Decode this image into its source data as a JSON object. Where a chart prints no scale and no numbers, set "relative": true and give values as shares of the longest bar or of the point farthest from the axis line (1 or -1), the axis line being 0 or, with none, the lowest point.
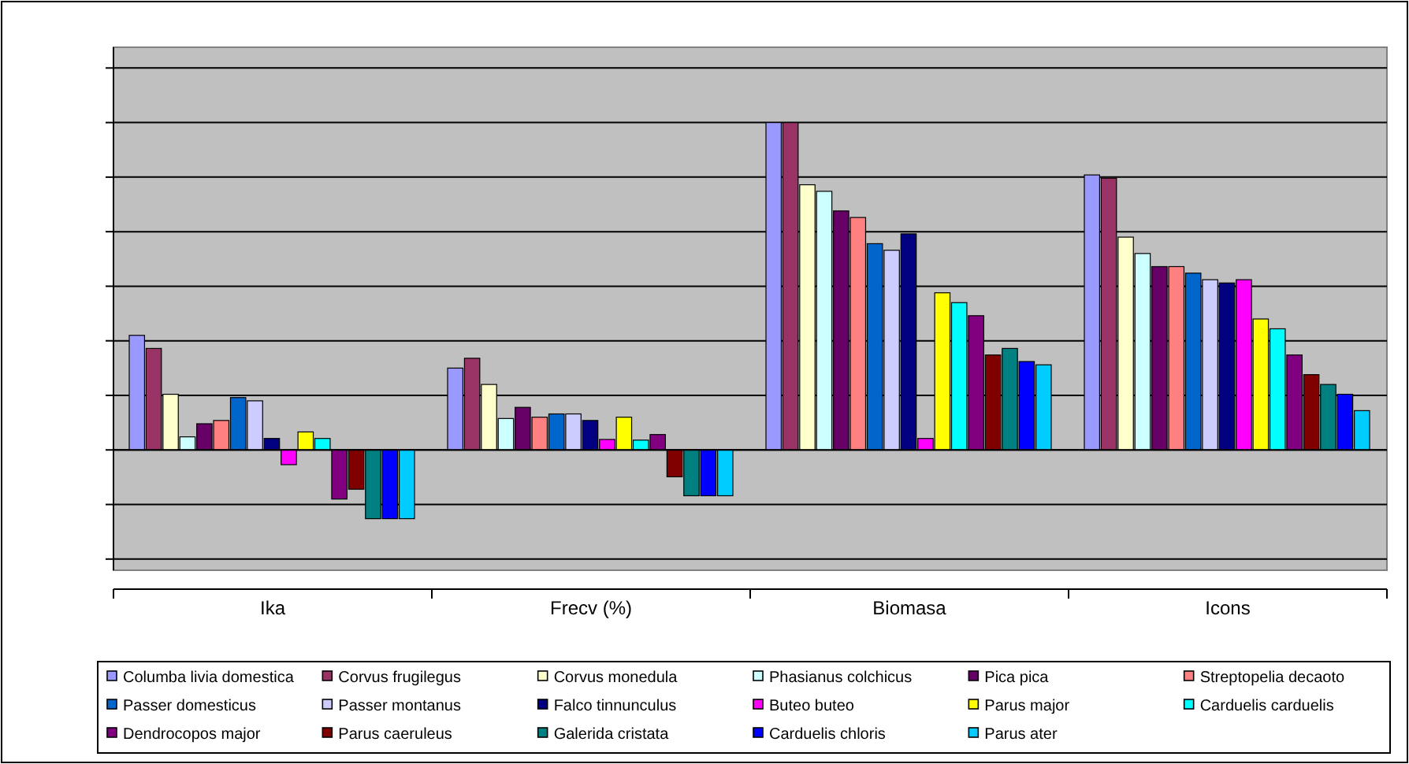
{
  "chart_data": {
    "type": "bar",
    "relative": true,
    "grid": true,
    "legend": "bottom",
    "categories": [
      "Ika",
      "Frecv (%)",
      "Biomasa",
      "Icons"
    ],
    "series": [
      {
        "name": "Columba livia domestica",
        "color": "#9999ff",
        "values": [
          0.35,
          0.25,
          1,
          0.84
        ]
      },
      {
        "name": "Corvus frugilegus",
        "color": "#993366",
        "values": [
          0.31,
          0.28,
          1,
          0.83
        ]
      },
      {
        "name": "Corvus monedula",
        "color": "#ffffcc",
        "values": [
          0.17,
          0.2,
          0.81,
          0.65
        ]
      },
      {
        "name": "Phasianus colchicus",
        "color": "#ccffff",
        "values": [
          0.04,
          0.096,
          0.79,
          0.6
        ]
      },
      {
        "name": "Pica pica",
        "color": "#660066",
        "values": [
          0.08,
          0.13,
          0.73,
          0.56
        ]
      },
      {
        "name": "Streptopelia decaoto",
        "color": "#ff8080",
        "values": [
          0.09,
          0.1,
          0.71,
          0.56
        ]
      },
      {
        "name": "Passer domesticus",
        "color": "#0066cc",
        "values": [
          0.16,
          0.11,
          0.63,
          0.54
        ]
      },
      {
        "name": "Passer montanus",
        "color": "#ccccff",
        "values": [
          0.15,
          0.11,
          0.61,
          0.52
        ]
      },
      {
        "name": "Falco tinnunculus",
        "color": "#000080",
        "values": [
          0.035,
          0.09,
          0.66,
          0.51
        ]
      },
      {
        "name": "Buteo buteo",
        "color": "#ff00ff",
        "values": [
          -0.045,
          0.032,
          0.035,
          0.52
        ]
      },
      {
        "name": "Parus major",
        "color": "#ffff00",
        "values": [
          0.055,
          0.1,
          0.48,
          0.4
        ]
      },
      {
        "name": "Carduelis carduelis",
        "color": "#00ffff",
        "values": [
          0.035,
          0.03,
          0.45,
          0.37
        ]
      },
      {
        "name": "Dendrocopos major",
        "color": "#800080",
        "values": [
          -0.15,
          0.047,
          0.41,
          0.29
        ]
      },
      {
        "name": "Parus caeruleus",
        "color": "#800000",
        "values": [
          -0.12,
          -0.082,
          0.29,
          0.23
        ]
      },
      {
        "name": "Galerida cristata",
        "color": "#008080",
        "values": [
          -0.21,
          -0.14,
          0.31,
          0.2
        ]
      },
      {
        "name": "Carduelis chloris",
        "color": "#0000ff",
        "values": [
          -0.21,
          -0.14,
          0.27,
          0.17
        ]
      },
      {
        "name": "Parus ater",
        "color": "#00ccff",
        "values": [
          -0.21,
          -0.14,
          0.26,
          0.12
        ]
      }
    ]
  }
}
